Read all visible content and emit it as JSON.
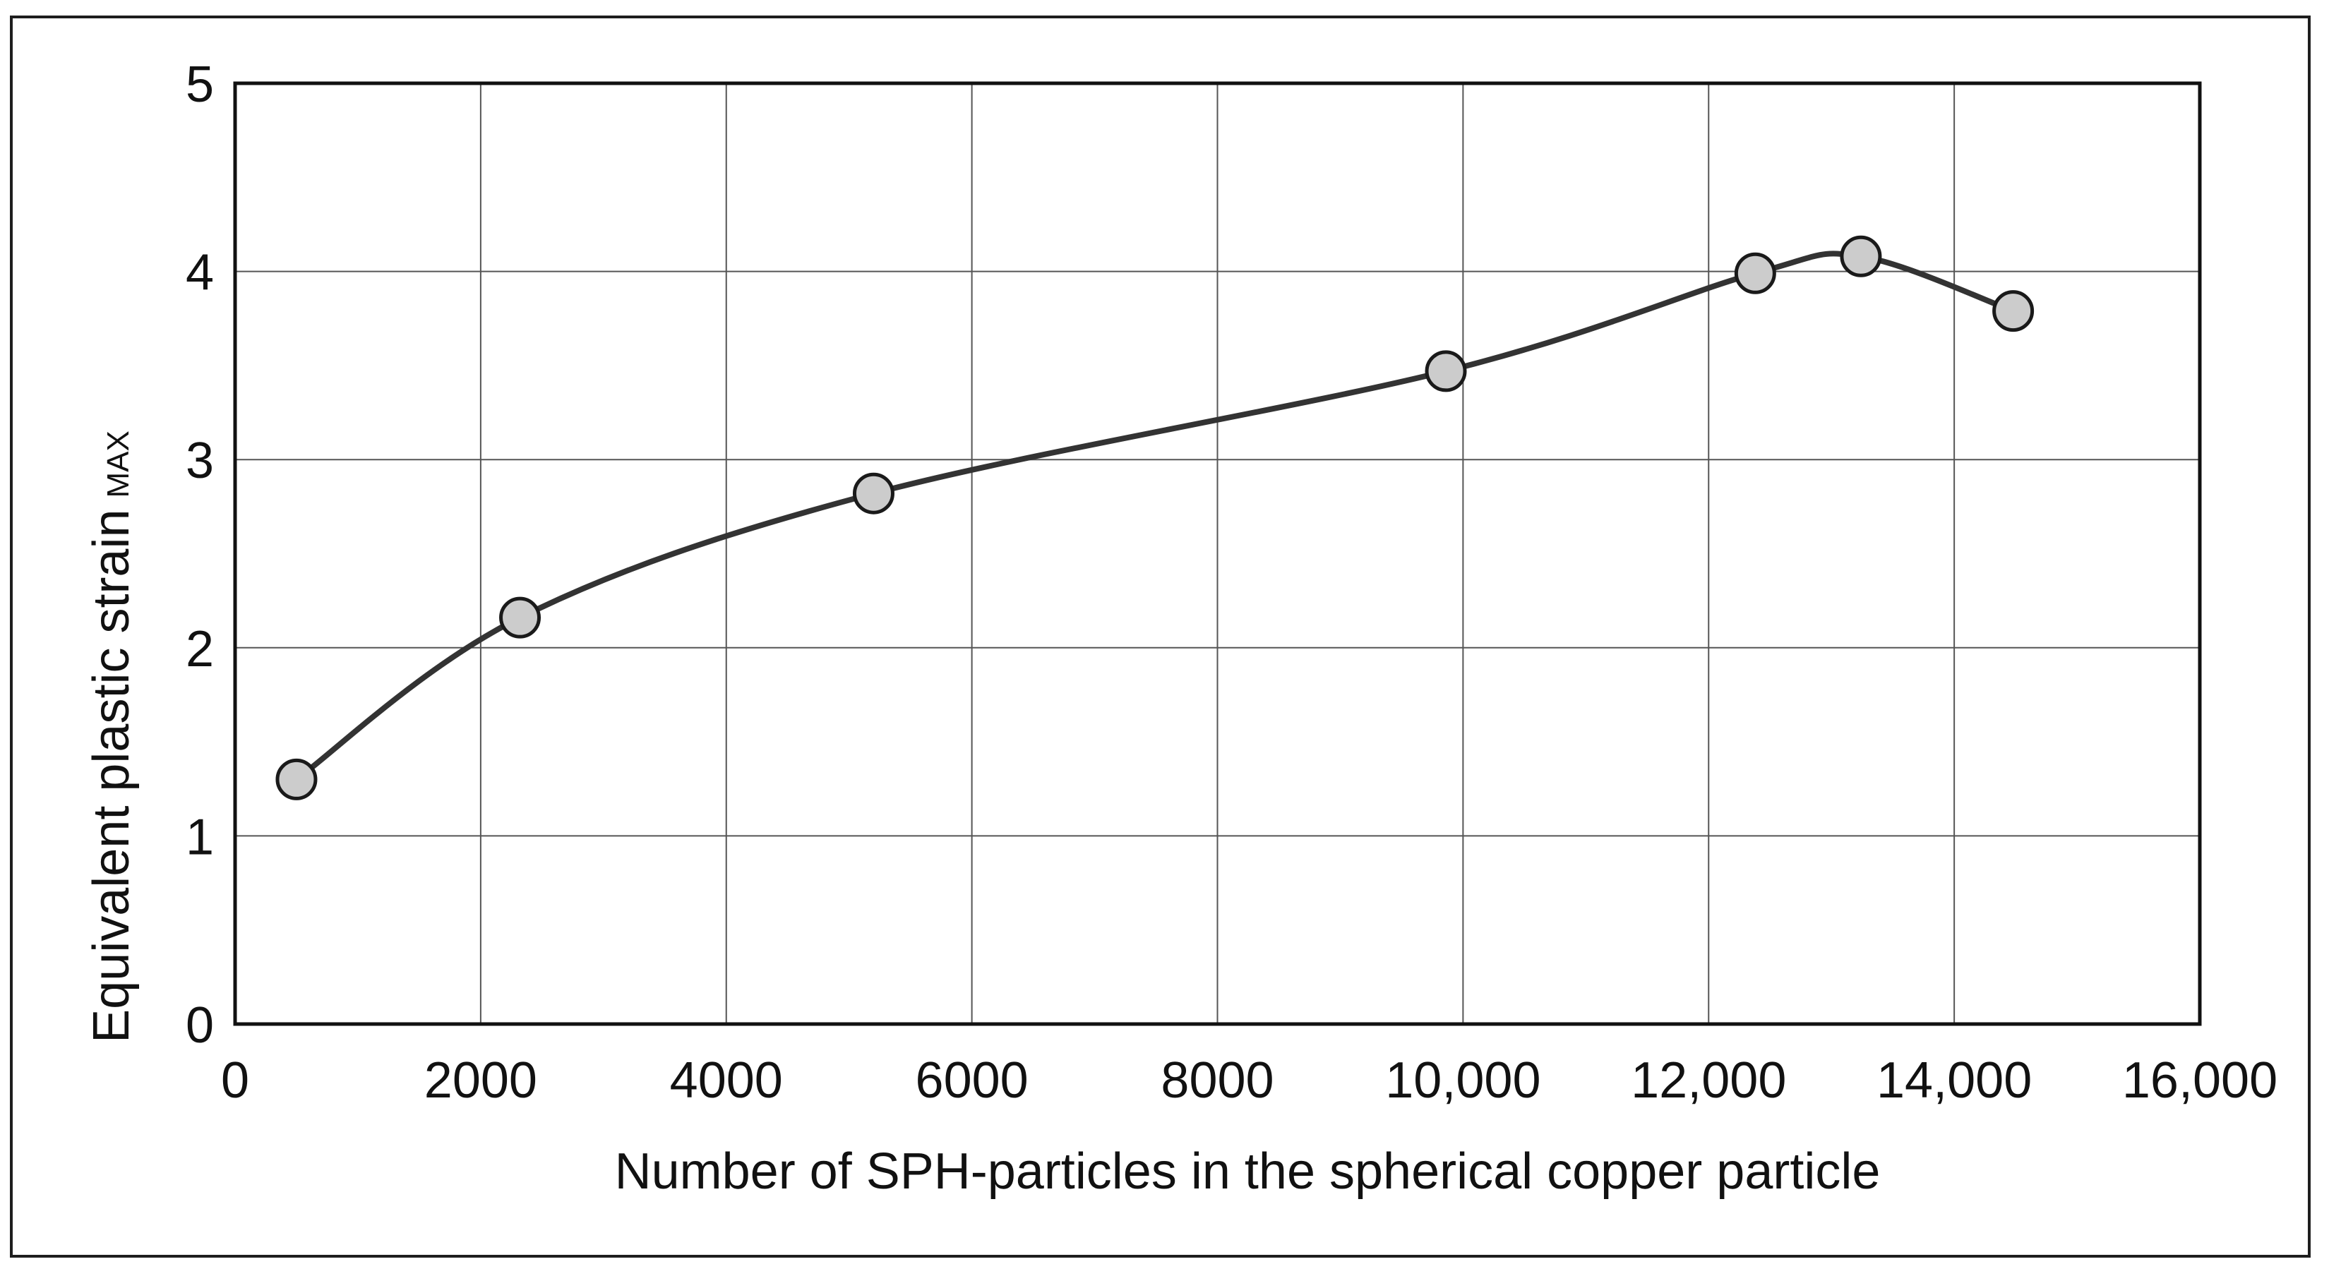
{
  "chart_data": {
    "type": "line",
    "title": "",
    "xlabel": "Number of SPH-particles in the spherical copper particle",
    "ylabel": "Equivalent plastic strain",
    "ylabel_subscript": "MAX",
    "xlim": [
      0,
      16000
    ],
    "ylim": [
      0,
      5
    ],
    "grid": true,
    "x_ticks": [
      0,
      2000,
      4000,
      6000,
      8000,
      10000,
      12000,
      14000,
      16000
    ],
    "x_tick_labels": [
      "0",
      "2000",
      "4000",
      "6000",
      "8000",
      "10,000",
      "12,000",
      "14,000",
      "16,000"
    ],
    "y_ticks": [
      0,
      1,
      2,
      3,
      4,
      5
    ],
    "y_tick_labels": [
      "0",
      "1",
      "2",
      "3",
      "4",
      "5"
    ],
    "series": [
      {
        "x": [
          500,
          2320,
          5200,
          9860,
          12380,
          13240,
          14480
        ],
        "y": [
          1.3,
          2.16,
          2.82,
          3.47,
          3.99,
          4.08,
          3.79
        ],
        "line_color": "#333333",
        "marker_fill": "#cccccc",
        "marker_stroke": "#1a1a1a"
      }
    ]
  }
}
